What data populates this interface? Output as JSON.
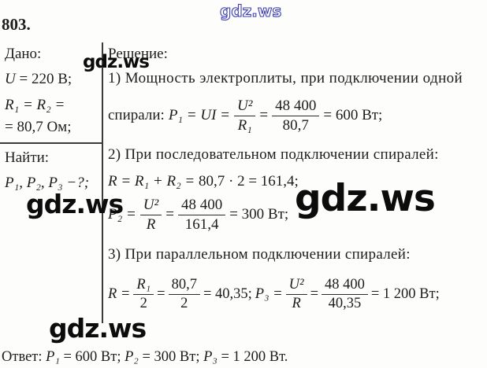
{
  "watermarks": {
    "top": "gdz.ws",
    "mid": "gdz.ws",
    "left": "gdz.ws",
    "big": "gdz.ws",
    "bottom": "gdz.ws"
  },
  "problem": {
    "number": "803."
  },
  "given": {
    "label": "Дано:",
    "u_var": "U",
    "u_rest": " = 220 В;",
    "r_line1": "R₁ = R₂ =",
    "r_line2": "= 80,7 Ом;"
  },
  "find": {
    "label": "Найти:",
    "value": "P₁, P₂, P₃ −?;"
  },
  "solution": {
    "label": "Решение:",
    "step1": {
      "title": "1) Мощность электроплиты, при подключении одной",
      "prefix": "спирали:",
      "lhs": "P₁ = UI =",
      "frac1_num": "U²",
      "frac1_den": "R₁",
      "eq": "=",
      "frac2_num": "48 400",
      "frac2_den": "80,7",
      "result": "= 600 Вт;"
    },
    "step2": {
      "title": "2) При последовательном подключении спиралей:",
      "eq1_lhs": "R = R₁ + R₂ = ",
      "eq1_rhs": "80,7 · 2 = 161,4;",
      "eq2_lhs": "P₂ =",
      "frac1_num": "U²",
      "frac1_den": "R",
      "eq": "=",
      "frac2_num": "48 400",
      "frac2_den": "161,4",
      "result": "= 300 Вт;"
    },
    "step3": {
      "title": "3) При параллельном подключении спиралей:",
      "eq1_lhs": "R =",
      "frac1_num": "R₁",
      "frac1_den": "2",
      "eq_a": "=",
      "frac2_num": "80,7",
      "frac2_den": "2",
      "mid": "= 40,35;",
      "eq2_lhs": "P₃ =",
      "frac3_num": "U²",
      "frac3_den": "R",
      "eq_b": "=",
      "frac4_num": "48 400",
      "frac4_den": "40,35",
      "result": "= 1 200 Вт;"
    }
  },
  "answer": {
    "label": "Ответ: ",
    "p1_var": "P₁",
    "p1_val": " = 600 Вт; ",
    "p2_var": "P₂",
    "p2_val": " = 300 Вт; ",
    "p3_var": "P₃",
    "p3_val": " = 1 200 Вт."
  }
}
